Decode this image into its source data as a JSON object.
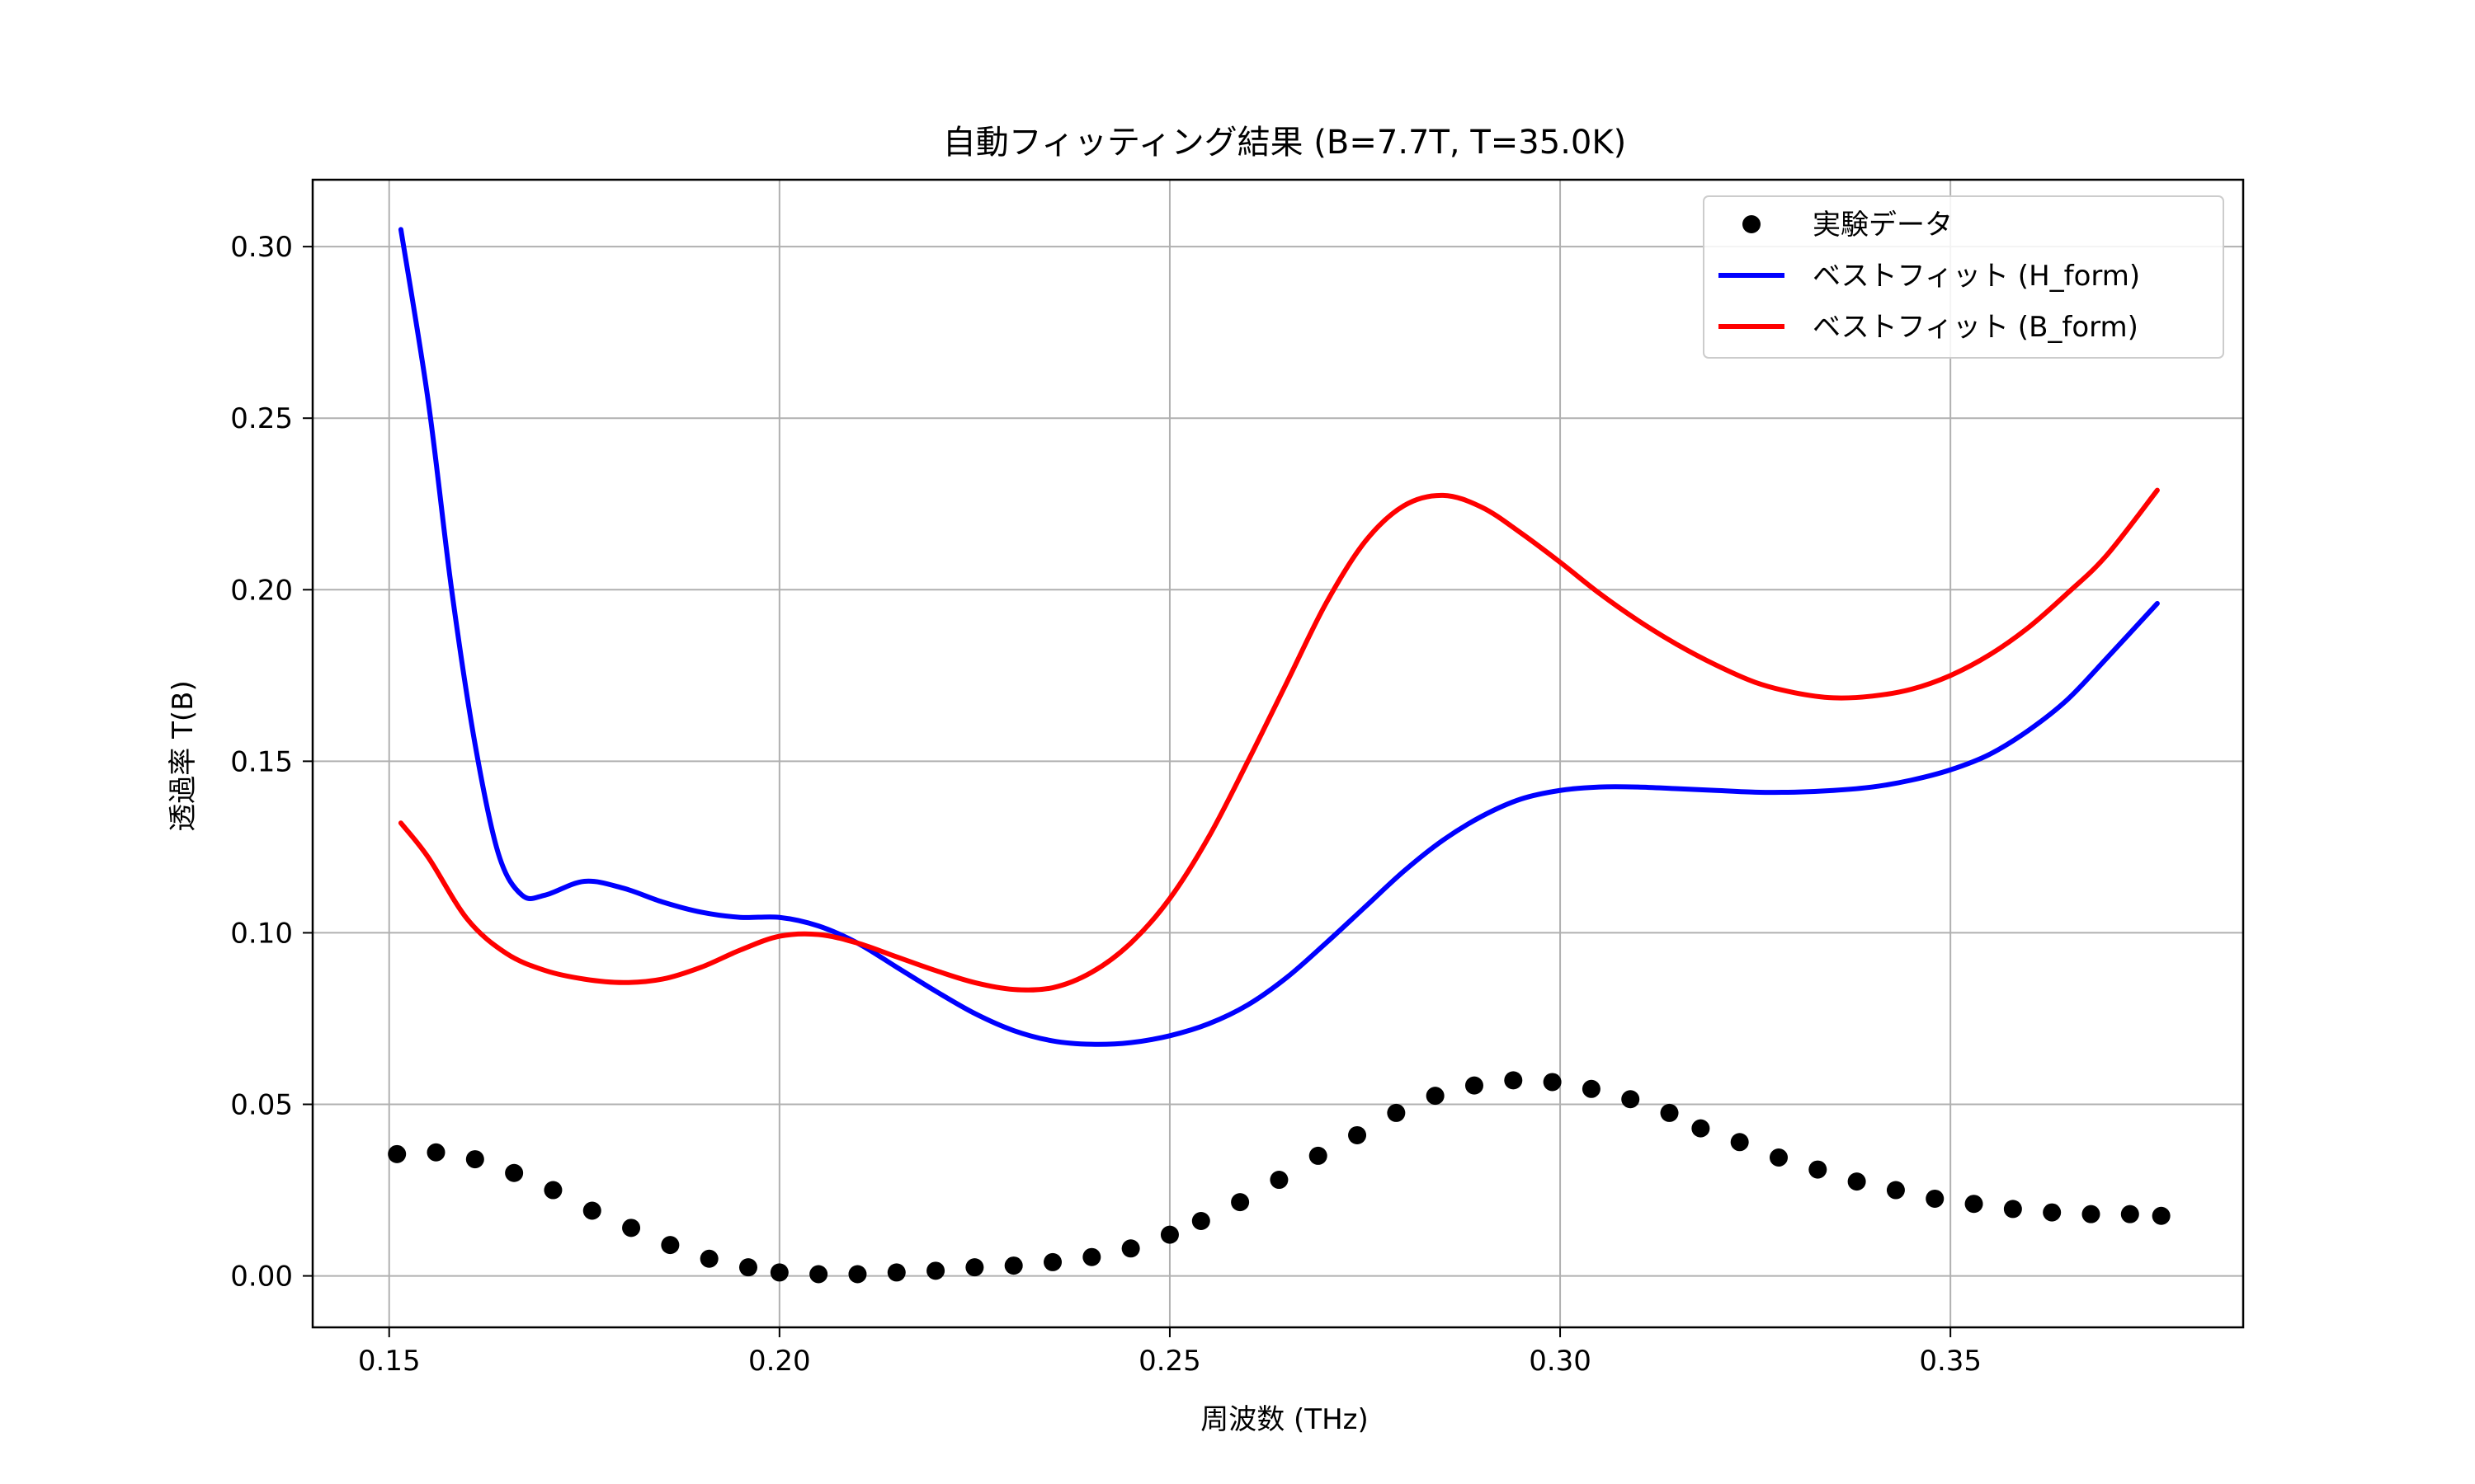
{
  "chart_data": {
    "type": "line",
    "title": "自動フィッティング結果 (B=7.7T, T=35.0K)",
    "xlabel": "周波数 (THz)",
    "ylabel": "透過率 T(B)",
    "xlim": [
      0.1402,
      0.3875
    ],
    "ylim": [
      -0.015,
      0.3195
    ],
    "xticks": [
      "0.15",
      "0.20",
      "0.25",
      "0.30",
      "0.35"
    ],
    "yticks": [
      "0.00",
      "0.05",
      "0.10",
      "0.15",
      "0.20",
      "0.25",
      "0.30"
    ],
    "grid": true,
    "legend_position": "top-right",
    "series": [
      {
        "name": "実験データ",
        "kind": "scatter",
        "color": "#000000",
        "x": [
          0.151,
          0.156,
          0.161,
          0.166,
          0.171,
          0.176,
          0.181,
          0.186,
          0.191,
          0.196,
          0.2,
          0.205,
          0.21,
          0.215,
          0.22,
          0.225,
          0.23,
          0.235,
          0.24,
          0.245,
          0.25,
          0.254,
          0.259,
          0.264,
          0.269,
          0.274,
          0.279,
          0.284,
          0.289,
          0.294,
          0.299,
          0.304,
          0.309,
          0.314,
          0.318,
          0.323,
          0.328,
          0.333,
          0.338,
          0.343,
          0.348,
          0.353,
          0.358,
          0.363,
          0.368,
          0.373,
          0.377
        ],
        "y": [
          0.0355,
          0.036,
          0.034,
          0.03,
          0.025,
          0.019,
          0.014,
          0.009,
          0.005,
          0.0025,
          0.001,
          0.0005,
          0.0005,
          0.001,
          0.0015,
          0.0025,
          0.003,
          0.004,
          0.0055,
          0.008,
          0.012,
          0.016,
          0.0215,
          0.028,
          0.035,
          0.041,
          0.0475,
          0.0525,
          0.0555,
          0.057,
          0.0565,
          0.0545,
          0.0515,
          0.0475,
          0.043,
          0.039,
          0.0345,
          0.031,
          0.0275,
          0.025,
          0.0225,
          0.021,
          0.0195,
          0.0185,
          0.018,
          0.018,
          0.0175
        ]
      },
      {
        "name": "ベストフィット (H_form)",
        "kind": "line",
        "color": "#0000ff",
        "x": [
          0.1515,
          0.155,
          0.158,
          0.161,
          0.164,
          0.167,
          0.17,
          0.175,
          0.18,
          0.185,
          0.19,
          0.195,
          0.2,
          0.205,
          0.21,
          0.215,
          0.22,
          0.225,
          0.23,
          0.235,
          0.24,
          0.245,
          0.25,
          0.255,
          0.26,
          0.265,
          0.27,
          0.275,
          0.28,
          0.285,
          0.29,
          0.295,
          0.3,
          0.305,
          0.31,
          0.315,
          0.32,
          0.325,
          0.33,
          0.335,
          0.34,
          0.345,
          0.35,
          0.355,
          0.36,
          0.365,
          0.37,
          0.3765
        ],
        "y": [
          0.305,
          0.255,
          0.2,
          0.155,
          0.123,
          0.111,
          0.111,
          0.115,
          0.113,
          0.109,
          0.106,
          0.1045,
          0.1045,
          0.102,
          0.097,
          0.09,
          0.083,
          0.0765,
          0.0715,
          0.0685,
          0.0675,
          0.068,
          0.07,
          0.0735,
          0.079,
          0.087,
          0.097,
          0.1075,
          0.118,
          0.127,
          0.134,
          0.139,
          0.1415,
          0.1425,
          0.1425,
          0.142,
          0.1415,
          0.141,
          0.141,
          0.1415,
          0.1425,
          0.1445,
          0.1475,
          0.152,
          0.159,
          0.168,
          0.18,
          0.196
        ]
      },
      {
        "name": "ベストフィット (B_form)",
        "kind": "line",
        "color": "#ff0000",
        "x": [
          0.1515,
          0.155,
          0.16,
          0.165,
          0.17,
          0.175,
          0.18,
          0.185,
          0.19,
          0.195,
          0.2,
          0.205,
          0.21,
          0.215,
          0.22,
          0.225,
          0.23,
          0.235,
          0.24,
          0.245,
          0.25,
          0.255,
          0.26,
          0.265,
          0.27,
          0.275,
          0.28,
          0.285,
          0.29,
          0.295,
          0.3,
          0.305,
          0.31,
          0.315,
          0.32,
          0.325,
          0.33,
          0.335,
          0.34,
          0.345,
          0.35,
          0.355,
          0.36,
          0.365,
          0.37,
          0.3765
        ],
        "y": [
          0.132,
          0.122,
          0.104,
          0.094,
          0.089,
          0.0865,
          0.0855,
          0.0865,
          0.09,
          0.095,
          0.099,
          0.0995,
          0.097,
          0.093,
          0.089,
          0.0855,
          0.0835,
          0.084,
          0.0885,
          0.097,
          0.11,
          0.128,
          0.15,
          0.173,
          0.196,
          0.214,
          0.2245,
          0.2275,
          0.224,
          0.2165,
          0.208,
          0.199,
          0.191,
          0.184,
          0.178,
          0.173,
          0.17,
          0.1685,
          0.169,
          0.171,
          0.175,
          0.181,
          0.189,
          0.199,
          0.21,
          0.229
        ]
      }
    ]
  }
}
